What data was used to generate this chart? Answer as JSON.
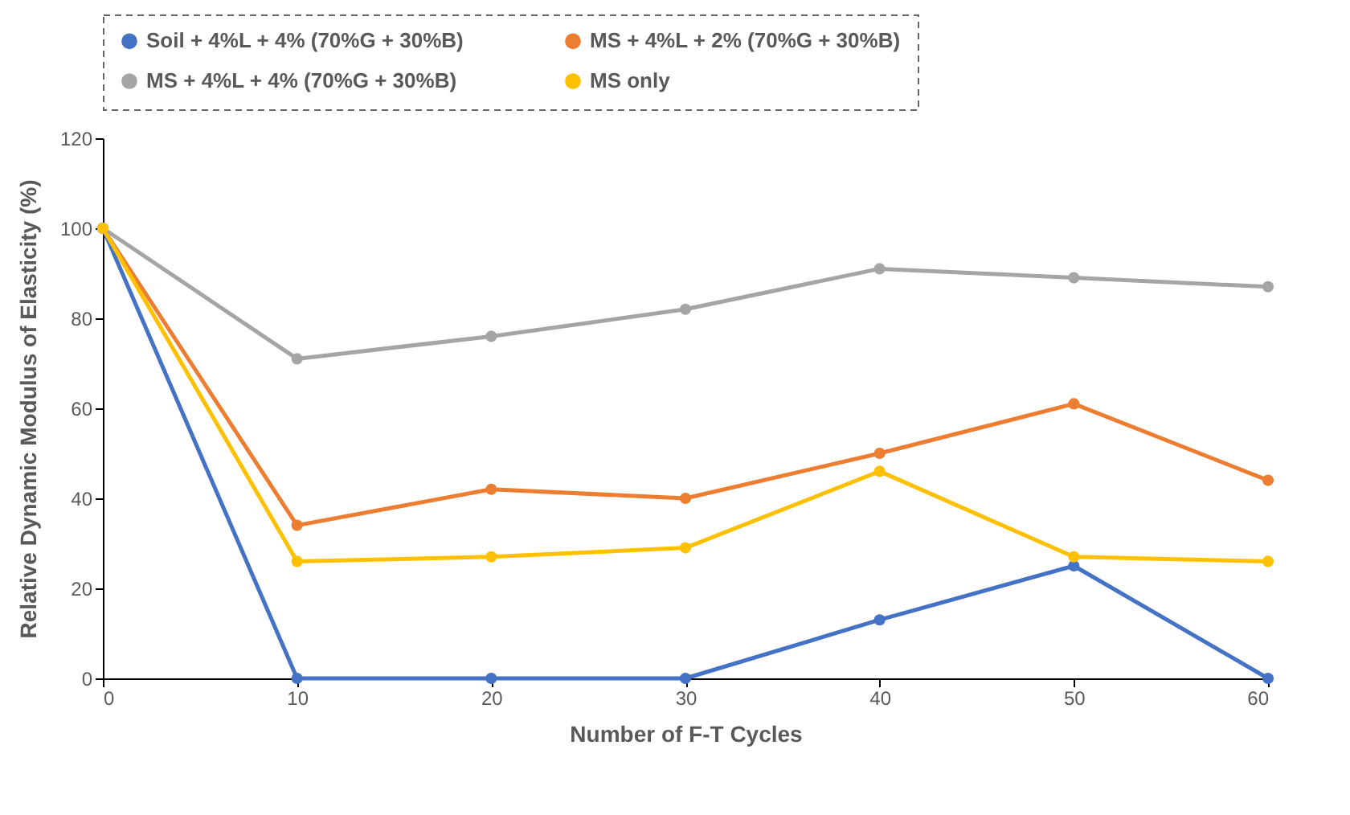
{
  "chart_data": {
    "type": "line",
    "xlabel": "Number of F-T Cycles",
    "ylabel": "Relative Dynamic Modulus of Elasticity (%)",
    "x": [
      0,
      10,
      20,
      30,
      40,
      50,
      60
    ],
    "xlim": [
      0,
      60
    ],
    "xticks": [
      0,
      10,
      20,
      30,
      40,
      50,
      60
    ],
    "ylim": [
      0,
      120
    ],
    "yticks": [
      0,
      20,
      40,
      60,
      80,
      100,
      120
    ],
    "grid": false,
    "legend": "top",
    "marker": "circle",
    "line_style": "solid",
    "series": [
      {
        "name": "Soil + 4%L + 4% (70%G + 30%B)",
        "color": "#4472c4",
        "values": [
          100,
          0,
          0,
          0,
          13,
          25,
          0
        ]
      },
      {
        "name": "MS + 4%L + 2% (70%G + 30%B)",
        "color": "#ed7d31",
        "values": [
          100,
          34,
          42,
          40,
          50,
          61,
          44
        ]
      },
      {
        "name": "MS + 4%L + 4% (70%G + 30%B)",
        "color": "#a5a5a5",
        "values": [
          100,
          71,
          76,
          82,
          91,
          89,
          87
        ]
      },
      {
        "name": "MS only",
        "color": "#ffc000",
        "values": [
          100,
          26,
          27,
          29,
          46,
          27,
          26
        ]
      }
    ]
  }
}
